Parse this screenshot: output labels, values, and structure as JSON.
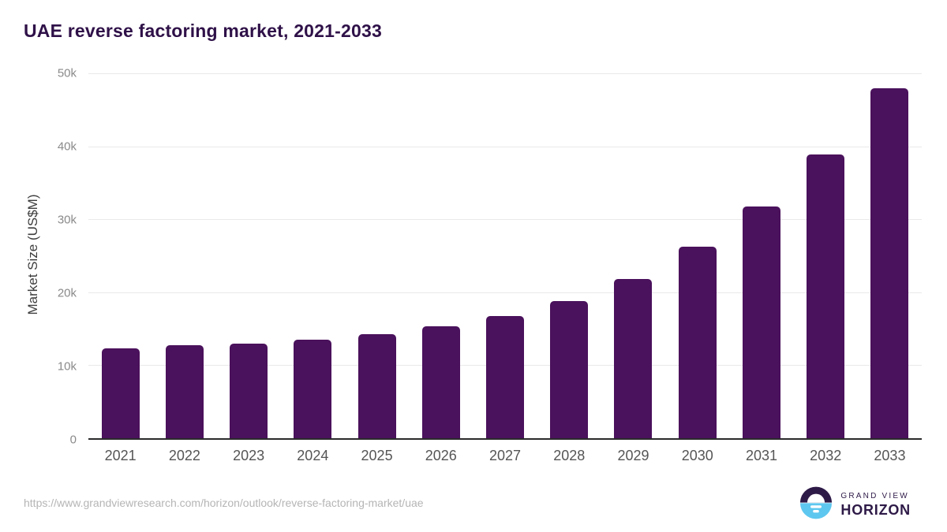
{
  "chart_data": {
    "type": "bar",
    "title": "UAE reverse factoring market, 2021-2033",
    "categories": [
      "2021",
      "2022",
      "2023",
      "2024",
      "2025",
      "2026",
      "2027",
      "2028",
      "2029",
      "2030",
      "2031",
      "2032",
      "2033"
    ],
    "values": [
      12300,
      12700,
      13000,
      13500,
      14250,
      15300,
      16700,
      18800,
      21800,
      26200,
      31700,
      38900,
      47900
    ],
    "xlabel": "",
    "ylabel": "Market Size (US$M)",
    "ylim": [
      0,
      50000
    ],
    "ytick_values": [
      0,
      10000,
      20000,
      30000,
      40000,
      50000
    ],
    "ytick_labels": [
      "0",
      "10k",
      "20k",
      "30k",
      "40k",
      "50k"
    ],
    "grid": true,
    "legend": false,
    "bar_color": "#4a115c",
    "title_color": "#2f1148",
    "gridline_color": "#e9e9e9"
  },
  "footer": {
    "source_url": "https://www.grandviewresearch.com/horizon/outlook/reverse-factoring-market/uae",
    "logo": {
      "line1": "GRAND VIEW",
      "line2": "HORIZON",
      "purple": "#2e1a47",
      "blue": "#5ec7ef"
    }
  }
}
